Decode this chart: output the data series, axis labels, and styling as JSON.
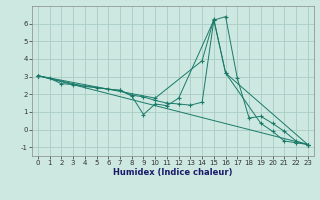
{
  "xlabel": "Humidex (Indice chaleur)",
  "ylabel": "",
  "background_color": "#cde8e0",
  "grid_color": "#aaccC4",
  "line_color": "#1a7a6a",
  "xlim": [
    -0.5,
    23.5
  ],
  "ylim": [
    -1.5,
    7.0
  ],
  "yticks": [
    -1,
    0,
    1,
    2,
    3,
    4,
    5,
    6
  ],
  "xticks": [
    0,
    1,
    2,
    3,
    4,
    5,
    6,
    7,
    8,
    9,
    10,
    11,
    12,
    13,
    14,
    15,
    16,
    17,
    18,
    19,
    20,
    21,
    22,
    23
  ],
  "lines": [
    {
      "x": [
        0,
        1,
        2,
        3,
        4,
        5,
        6,
        7,
        8,
        9,
        10,
        11,
        12,
        13,
        14,
        15,
        16,
        17,
        18,
        19,
        20,
        21,
        22,
        23
      ],
      "y": [
        3.05,
        2.9,
        2.6,
        2.55,
        2.45,
        2.38,
        2.28,
        2.22,
        1.95,
        1.85,
        1.65,
        1.5,
        1.45,
        1.38,
        1.55,
        6.2,
        6.4,
        2.9,
        0.65,
        0.75,
        0.35,
        -0.1,
        -0.65,
        -0.85
      ]
    },
    {
      "x": [
        0,
        4,
        7,
        8,
        9,
        10,
        11,
        12,
        15,
        16,
        19,
        20,
        21,
        22,
        23
      ],
      "y": [
        3.05,
        2.45,
        2.22,
        1.9,
        0.85,
        1.45,
        1.35,
        1.78,
        6.2,
        3.2,
        0.35,
        -0.1,
        -0.65,
        -0.75,
        -0.85
      ]
    },
    {
      "x": [
        0,
        23
      ],
      "y": [
        3.05,
        -0.85
      ]
    },
    {
      "x": [
        0,
        10,
        14,
        15,
        16,
        23
      ],
      "y": [
        3.05,
        1.78,
        3.9,
        6.25,
        3.2,
        -0.85
      ]
    }
  ]
}
